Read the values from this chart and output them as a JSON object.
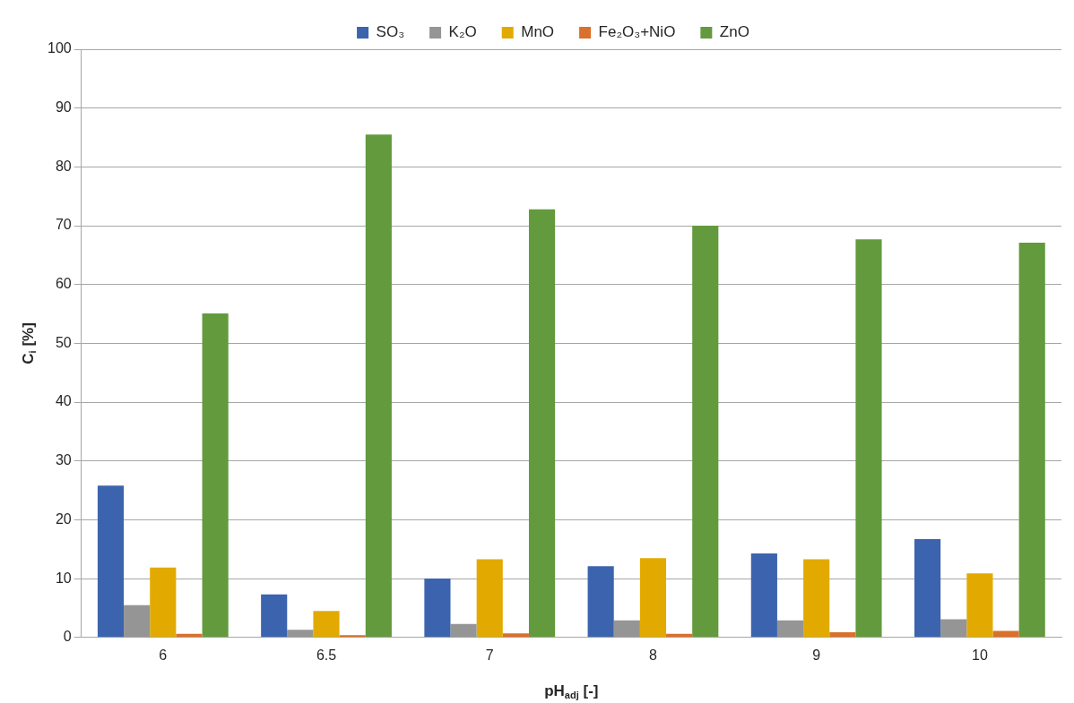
{
  "chart_data": {
    "type": "bar",
    "xlabel": "pH$_{adj}$ [-]",
    "ylabel": "C$_{i}$ [%]",
    "categories": [
      "6",
      "6.5",
      "7",
      "8",
      "9",
      "10"
    ],
    "series": [
      {
        "name": "SO₃",
        "color": "#3c64ae",
        "values": [
          25.8,
          7.3,
          10,
          12.1,
          14.3,
          16.7
        ]
      },
      {
        "name": "K₂O",
        "color": "#959595",
        "values": [
          5.5,
          1.3,
          2.3,
          2.9,
          2.9,
          3.1
        ]
      },
      {
        "name": "MnO",
        "color": "#e2aa00",
        "values": [
          11.9,
          4.5,
          13.3,
          13.5,
          13.3,
          10.9
        ]
      },
      {
        "name": "Fe₂O₃+NiO",
        "color": "#d9702b",
        "values": [
          0.6,
          0.4,
          0.7,
          0.6,
          0.9,
          1.1
        ]
      },
      {
        "name": "ZnO",
        "color": "#639a3d",
        "values": [
          55.1,
          85.5,
          72.8,
          70,
          67.7,
          67.1
        ]
      }
    ],
    "ylim": [
      0,
      100
    ],
    "yticks": [
      0,
      10,
      20,
      30,
      40,
      50,
      60,
      70,
      80,
      90,
      100
    ],
    "grid": "y",
    "legend": "top"
  }
}
